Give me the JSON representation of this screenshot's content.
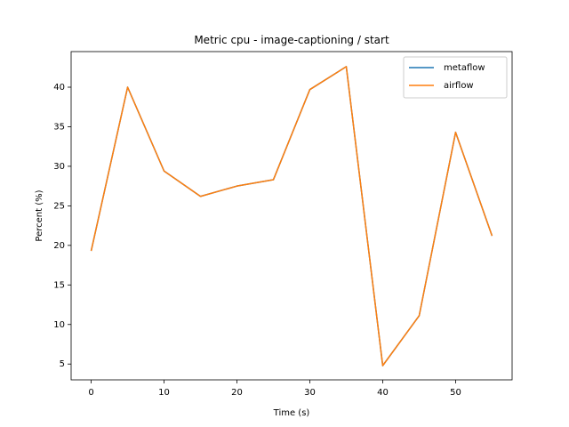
{
  "chart_data": {
    "type": "line",
    "title": "Metric cpu - image-captioning / start",
    "xlabel": "Time (s)",
    "ylabel": "Percent (%)",
    "xlim": [
      -2.75,
      57.75
    ],
    "ylim": [
      3.0,
      44.5
    ],
    "xticks": [
      0,
      10,
      20,
      30,
      40,
      50
    ],
    "yticks": [
      5,
      10,
      15,
      20,
      25,
      30,
      35,
      40
    ],
    "grid": false,
    "legend_position": "top-right",
    "series": [
      {
        "name": "metaflow",
        "color": "#1f77b4",
        "x": [
          0,
          5,
          10,
          15,
          20,
          25,
          30,
          35,
          40,
          45,
          50,
          55
        ],
        "y": [
          19.3,
          40.0,
          29.4,
          26.2,
          27.5,
          28.3,
          39.7,
          42.6,
          4.8,
          11.1,
          34.3,
          21.2
        ]
      },
      {
        "name": "airflow",
        "color": "#ff7f0e",
        "x": [
          0,
          5,
          10,
          15,
          20,
          25,
          30,
          35,
          40,
          45,
          50,
          55
        ],
        "y": [
          19.3,
          40.0,
          29.4,
          26.2,
          27.5,
          28.3,
          39.7,
          42.6,
          4.8,
          11.1,
          34.3,
          21.2
        ]
      }
    ]
  }
}
